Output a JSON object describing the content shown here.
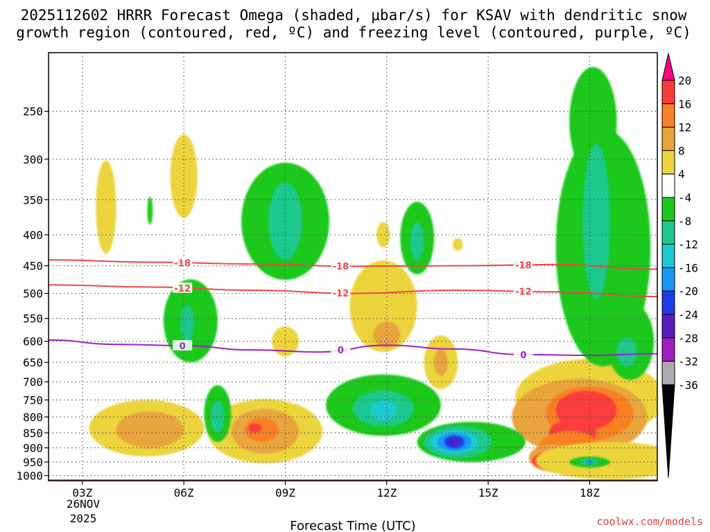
{
  "chart_data": {
    "type": "heatmap",
    "title_line1": "2025112602 HRRR Forecast Omega (shaded, μbar/s) for KSAV with dendritic snow",
    "title_line2": "growth region (contoured, red, ºC) and freezing level (contoured, purple, ºC)",
    "xlabel": "Forecast Time (UTC)",
    "ylabel": "",
    "credit": "coolwx.com/models",
    "x_ticks": [
      {
        "hour": 3,
        "label": "03Z"
      },
      {
        "hour": 6,
        "label": "06Z"
      },
      {
        "hour": 9,
        "label": "09Z"
      },
      {
        "hour": 12,
        "label": "12Z"
      },
      {
        "hour": 15,
        "label": "15Z"
      },
      {
        "hour": 18,
        "label": "18Z"
      }
    ],
    "x_date_line1": "26NOV",
    "x_date_line2": "2025",
    "x_range_hours": [
      2,
      20
    ],
    "y_levels_hPa": [
      250,
      300,
      350,
      400,
      450,
      500,
      550,
      600,
      650,
      700,
      750,
      800,
      850,
      900,
      950,
      1000
    ],
    "y_range_hPa": [
      200,
      1020
    ],
    "surface_pressure_hPa": 1015,
    "colorbar": {
      "labels": [
        "20",
        "16",
        "12",
        "8",
        "4",
        "-4",
        "-8",
        "-12",
        "-16",
        "-20",
        "-24",
        "-28",
        "-32",
        "-36"
      ],
      "colors_top_to_bottom": [
        "#ff0084",
        "#fa3c3c",
        "#f88022",
        "#e8a43c",
        "#ecd43c",
        "#ffffff",
        "#1bc81b",
        "#1ec88c",
        "#1ecad2",
        "#1a96f5",
        "#1e3ce6",
        "#5a1ebe",
        "#a01ebe",
        "#aaaaaa",
        "#000000"
      ]
    },
    "contours": [
      {
        "name": "dgz-minus18",
        "label": "-18",
        "color": "#f04646",
        "points": [
          [
            2,
            440
          ],
          [
            5,
            444
          ],
          [
            8,
            447
          ],
          [
            11,
            451
          ],
          [
            14,
            450
          ],
          [
            17,
            448
          ],
          [
            20,
            456
          ]
        ]
      },
      {
        "name": "dgz-minus12",
        "label": "-12",
        "color": "#f04646",
        "points": [
          [
            2,
            484
          ],
          [
            5,
            488
          ],
          [
            8,
            494
          ],
          [
            11,
            500
          ],
          [
            14,
            494
          ],
          [
            17,
            497
          ],
          [
            20,
            506
          ]
        ]
      },
      {
        "name": "freezing-level-0",
        "label": "0",
        "color": "#a01ec8",
        "points": [
          [
            2,
            597
          ],
          [
            4,
            607
          ],
          [
            6,
            610
          ],
          [
            8,
            620
          ],
          [
            10,
            625
          ],
          [
            12,
            609
          ],
          [
            14,
            618
          ],
          [
            16,
            631
          ],
          [
            18,
            633
          ],
          [
            20,
            629
          ]
        ]
      }
    ],
    "omega_cells": [
      {
        "hour": 3.7,
        "p": 360,
        "dx": 0.3,
        "dp": 70,
        "value": 5
      },
      {
        "hour": 6.0,
        "p": 320,
        "dx": 0.4,
        "dp": 55,
        "value": 5
      },
      {
        "hour": 9.0,
        "p": 600,
        "dx": 0.4,
        "dp": 35,
        "value": 5
      },
      {
        "hour": 11.9,
        "p": 525,
        "dx": 1.0,
        "dp": 100,
        "value": 6
      },
      {
        "hour": 12.0,
        "p": 585,
        "dx": 0.4,
        "dp": 30,
        "value": 9
      },
      {
        "hour": 11.9,
        "p": 400,
        "dx": 0.2,
        "dp": 20,
        "value": 5
      },
      {
        "hour": 14.1,
        "p": 415,
        "dx": 0.15,
        "dp": 10,
        "value": 5
      },
      {
        "hour": 13.6,
        "p": 650,
        "dx": 0.5,
        "dp": 70,
        "value": 5
      },
      {
        "hour": 13.6,
        "p": 650,
        "dx": 0.2,
        "dp": 35,
        "value": 9
      },
      {
        "hour": 4.9,
        "p": 835,
        "dx": 1.7,
        "dp": 95,
        "value": 6
      },
      {
        "hour": 5.0,
        "p": 840,
        "dx": 1.0,
        "dp": 60,
        "value": 9
      },
      {
        "hour": 8.4,
        "p": 845,
        "dx": 1.7,
        "dp": 110,
        "value": 6
      },
      {
        "hour": 8.4,
        "p": 845,
        "dx": 1.0,
        "dp": 75,
        "value": 9
      },
      {
        "hour": 8.3,
        "p": 840,
        "dx": 0.5,
        "dp": 40,
        "value": 13
      },
      {
        "hour": 8.1,
        "p": 835,
        "dx": 0.2,
        "dp": 15,
        "value": 17
      },
      {
        "hour": 12.9,
        "p": 785,
        "dx": 0.2,
        "dp": 35,
        "value": 5
      },
      {
        "hour": 18.0,
        "p": 745,
        "dx": 2.2,
        "dp": 120,
        "value": 5
      },
      {
        "hour": 17.7,
        "p": 800,
        "dx": 2.0,
        "dp": 125,
        "value": 8
      },
      {
        "hour": 17.9,
        "p": 790,
        "dx": 1.6,
        "dp": 100,
        "value": 11
      },
      {
        "hour": 18.0,
        "p": 790,
        "dx": 1.3,
        "dp": 85,
        "value": 15
      },
      {
        "hour": 17.9,
        "p": 780,
        "dx": 0.9,
        "dp": 60,
        "value": 19
      },
      {
        "hour": 17.5,
        "p": 850,
        "dx": 0.7,
        "dp": 45,
        "value": 19
      },
      {
        "hour": 17.4,
        "p": 900,
        "dx": 0.9,
        "dp": 60,
        "value": 15
      },
      {
        "hour": 16.9,
        "p": 935,
        "dx": 0.7,
        "dp": 50,
        "value": 11
      },
      {
        "hour": 16.8,
        "p": 945,
        "dx": 0.5,
        "dp": 30,
        "value": 17
      },
      {
        "hour": 16.8,
        "p": 948,
        "dx": 0.25,
        "dp": 15,
        "value": 22
      },
      {
        "hour": 18.6,
        "p": 945,
        "dx": 2.2,
        "dp": 70,
        "value": 5
      },
      {
        "hour": 19.8,
        "p": 950,
        "dx": 0.6,
        "dp": 30,
        "value": 5
      },
      {
        "hour": 5.0,
        "p": 365,
        "dx": 0.08,
        "dp": 20,
        "value": -6
      },
      {
        "hour": 9.0,
        "p": 380,
        "dx": 1.3,
        "dp": 95,
        "value": -6
      },
      {
        "hour": 9.0,
        "p": 380,
        "dx": 0.5,
        "dp": 60,
        "value": -9
      },
      {
        "hour": 6.2,
        "p": 555,
        "dx": 0.8,
        "dp": 95,
        "value": -6
      },
      {
        "hour": 6.1,
        "p": 560,
        "dx": 0.2,
        "dp": 40,
        "value": -9
      },
      {
        "hour": 7.0,
        "p": 790,
        "dx": 0.4,
        "dp": 90,
        "value": -6
      },
      {
        "hour": 7.0,
        "p": 800,
        "dx": 0.2,
        "dp": 50,
        "value": -10
      },
      {
        "hour": 12.9,
        "p": 405,
        "dx": 0.5,
        "dp": 60,
        "value": -6
      },
      {
        "hour": 12.9,
        "p": 410,
        "dx": 0.2,
        "dp": 30,
        "value": -9
      },
      {
        "hour": 11.9,
        "p": 765,
        "dx": 1.7,
        "dp": 95,
        "value": -6
      },
      {
        "hour": 11.9,
        "p": 775,
        "dx": 0.9,
        "dp": 55,
        "value": -10
      },
      {
        "hour": 11.9,
        "p": 780,
        "dx": 0.4,
        "dp": 30,
        "value": -14
      },
      {
        "hour": 14.5,
        "p": 880,
        "dx": 1.6,
        "dp": 70,
        "value": -6
      },
      {
        "hour": 14.1,
        "p": 880,
        "dx": 1.0,
        "dp": 55,
        "value": -10
      },
      {
        "hour": 14.0,
        "p": 880,
        "dx": 0.7,
        "dp": 40,
        "value": -14
      },
      {
        "hour": 14.0,
        "p": 880,
        "dx": 0.5,
        "dp": 30,
        "value": -18
      },
      {
        "hour": 14.0,
        "p": 880,
        "dx": 0.3,
        "dp": 22,
        "value": -22
      },
      {
        "hour": 14.0,
        "p": 880,
        "dx": 0.15,
        "dp": 12,
        "value": -26
      },
      {
        "hour": 18.4,
        "p": 420,
        "dx": 1.4,
        "dp": 240,
        "value": -6
      },
      {
        "hour": 18.1,
        "p": 260,
        "dx": 0.7,
        "dp": 60,
        "value": -6
      },
      {
        "hour": 19.2,
        "p": 600,
        "dx": 0.7,
        "dp": 95,
        "value": -6
      },
      {
        "hour": 18.2,
        "p": 380,
        "dx": 0.4,
        "dp": 130,
        "value": -9
      },
      {
        "hour": 19.1,
        "p": 625,
        "dx": 0.3,
        "dp": 35,
        "value": -9
      },
      {
        "hour": 18.0,
        "p": 950,
        "dx": 0.6,
        "dp": 20,
        "value": -6
      },
      {
        "hour": 18.0,
        "p": 950,
        "dx": 0.3,
        "dp": 12,
        "value": -10
      },
      {
        "hour": 18.0,
        "p": 950,
        "dx": 0.1,
        "dp": 6,
        "value": -16
      }
    ]
  }
}
